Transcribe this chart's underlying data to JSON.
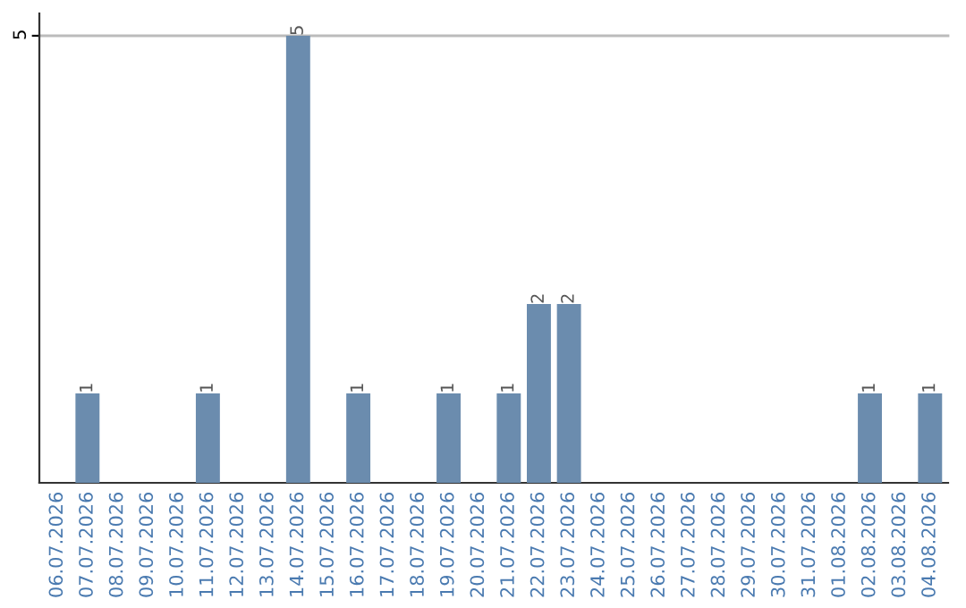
{
  "chart_data": {
    "type": "bar",
    "categories": [
      "06.07.2026",
      "07.07.2026",
      "08.07.2026",
      "09.07.2026",
      "10.07.2026",
      "11.07.2026",
      "12.07.2026",
      "13.07.2026",
      "14.07.2026",
      "15.07.2026",
      "16.07.2026",
      "17.07.2026",
      "18.07.2026",
      "19.07.2026",
      "20.07.2026",
      "21.07.2026",
      "22.07.2026",
      "23.07.2026",
      "24.07.2026",
      "25.07.2026",
      "26.07.2026",
      "27.07.2026",
      "28.07.2026",
      "29.07.2026",
      "30.07.2026",
      "31.07.2026",
      "01.08.2026",
      "02.08.2026",
      "03.08.2026",
      "04.08.2026"
    ],
    "values": [
      0,
      1,
      0,
      0,
      0,
      1,
      0,
      0,
      5,
      0,
      1,
      0,
      0,
      1,
      0,
      1,
      2,
      2,
      0,
      0,
      0,
      0,
      0,
      0,
      0,
      0,
      0,
      1,
      0,
      1
    ],
    "value_labels": [
      null,
      "1",
      null,
      null,
      null,
      "1",
      null,
      null,
      "5",
      null,
      "1",
      null,
      null,
      "1",
      null,
      "1",
      "2",
      "2",
      null,
      null,
      null,
      null,
      null,
      null,
      null,
      null,
      null,
      "1",
      null,
      "1"
    ],
    "color": "#6b8cae",
    "ylim": [
      0,
      5.25
    ],
    "yticks": [
      5
    ],
    "grid": "y"
  }
}
